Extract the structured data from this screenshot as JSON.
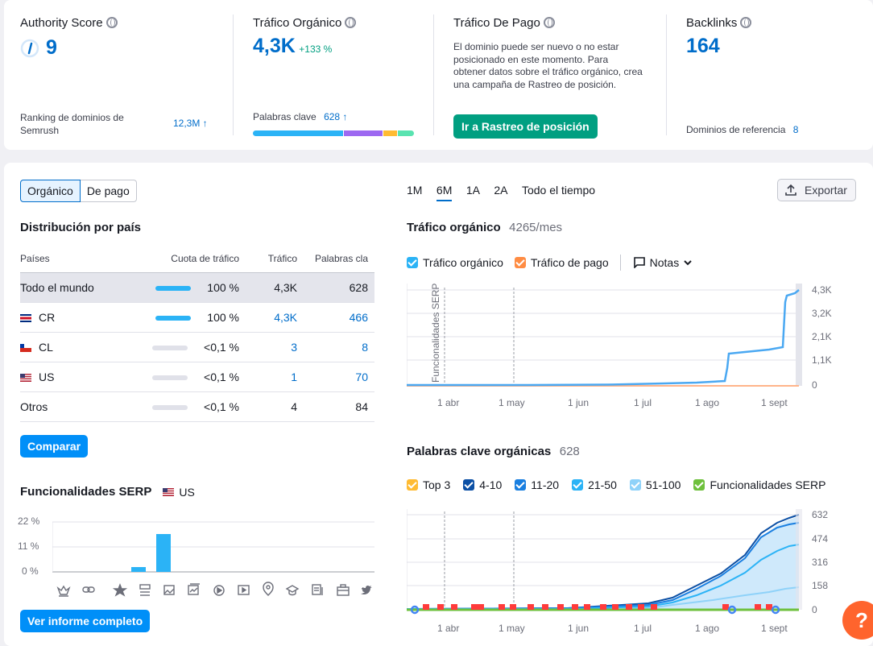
{
  "metrics": {
    "authority": {
      "title": "Authority Score",
      "value": "9",
      "ranking_label": "Ranking de dominios de Semrush",
      "ranking_value": "12,3M ↑"
    },
    "organic": {
      "title": "Tráfico Orgánico",
      "value": "4,3K",
      "change": "+133 %",
      "keywords_label": "Palabras clave",
      "keywords_value": "628 ↑"
    },
    "paid": {
      "title": "Tráfico De Pago",
      "desc": "El dominio puede ser nuevo o no estar posicionado en este momento. Para obtener datos sobre el tráfico orgánico, crea una campaña de Rastreo de posición.",
      "button": "Ir a Rastreo de posición"
    },
    "backlinks": {
      "title": "Backlinks",
      "value": "164",
      "ref_label": "Dominios de referencia",
      "ref_value": "8"
    }
  },
  "toggle": {
    "organic": "Orgánico",
    "paid": "De pago"
  },
  "distribution": {
    "title": "Distribución por país",
    "headers": [
      "Países",
      "Cuota de tráfico",
      "Tráfico",
      "Palabras cla"
    ],
    "rows": [
      {
        "country": "Todo el mundo",
        "share": "100 %",
        "traffic": "4,3K",
        "keywords": "628",
        "full": true
      },
      {
        "country": "CR",
        "share": "100 %",
        "traffic": "4,3K",
        "keywords": "466",
        "full": true
      },
      {
        "country": "CL",
        "share": "<0,1 %",
        "traffic": "3",
        "keywords": "8",
        "full": false
      },
      {
        "country": "US",
        "share": "<0,1 %",
        "traffic": "1",
        "keywords": "70",
        "full": false
      },
      {
        "country": "Otros",
        "share": "<0,1 %",
        "traffic": "4",
        "keywords": "84",
        "full": false
      }
    ],
    "compare_button": "Comparar"
  },
  "serp": {
    "title": "Funcionalidades SERP",
    "country": "US",
    "yticks": [
      "22 %",
      "11 %",
      "0 %"
    ],
    "report_button": "Ver informe completo"
  },
  "periods": [
    "1M",
    "6M",
    "1A",
    "2A",
    "Todo el tiempo"
  ],
  "active_period": "6M",
  "export_label": "Exportar",
  "traffic_chart": {
    "title": "Tráfico orgánico",
    "subtitle": "4265/mes",
    "legend": [
      "Tráfico orgánico",
      "Tráfico de pago"
    ],
    "notes_label": "Notas",
    "annotation": "Funcionalidades SERP",
    "yticks": [
      "4,3K",
      "3,2K",
      "2,1K",
      "1,1K",
      "0"
    ],
    "xticks": [
      "1 abr",
      "1 may",
      "1 jun",
      "1 jul",
      "1 ago",
      "1 sept"
    ]
  },
  "keywords_chart": {
    "title": "Palabras clave orgánicas",
    "subtitle": "628",
    "legend": [
      "Top 3",
      "4-10",
      "11-20",
      "21-50",
      "51-100",
      "Funcionalidades SERP"
    ],
    "yticks": [
      "632",
      "474",
      "316",
      "158",
      "0"
    ],
    "xticks": [
      "1 abr",
      "1 may",
      "1 jun",
      "1 jul",
      "1 ago",
      "1 sept"
    ]
  },
  "help_label": "?",
  "colors": {
    "accent": "#006dca",
    "green": "#009f81",
    "cta": "#008ff8",
    "orange": "#ff642d"
  }
}
